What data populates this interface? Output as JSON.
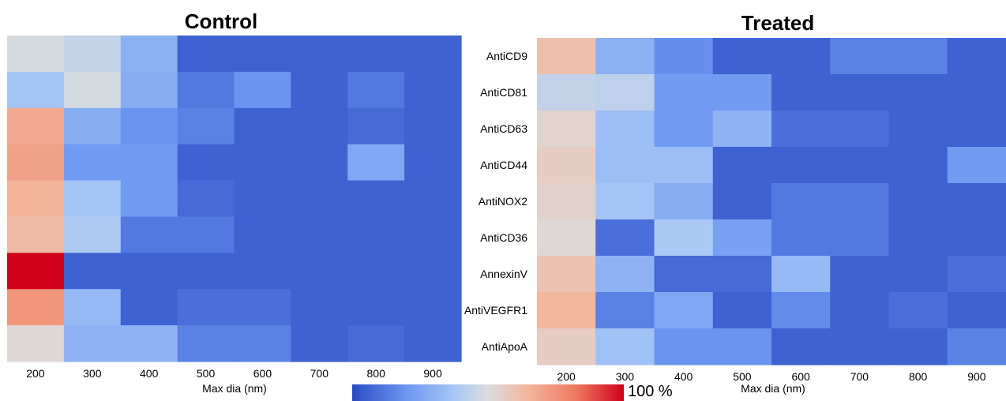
{
  "chart_data": [
    {
      "type": "heatmap",
      "title": "Control",
      "xlabel": "Max dia (nm)",
      "ylabel": "",
      "x_ticks": [
        "200",
        "300",
        "400",
        "500",
        "600",
        "700",
        "800",
        "900"
      ],
      "rows": [
        "AntiCD9",
        "AntiCD81",
        "AntiCD63",
        "AntiCD44",
        "AntiNOX2",
        "AntiCD36",
        "AnnexinV",
        "AntiVEGFR1",
        "AntiApoA"
      ],
      "values": [
        [
          0.48,
          0.42,
          0.25,
          0.05,
          0.05,
          0.05,
          0.05,
          0.05
        ],
        [
          0.32,
          0.48,
          0.24,
          0.1,
          0.16,
          0.05,
          0.1,
          0.05
        ],
        [
          0.7,
          0.24,
          0.16,
          0.12,
          0.05,
          0.05,
          0.07,
          0.05
        ],
        [
          0.72,
          0.18,
          0.18,
          0.05,
          0.05,
          0.05,
          0.22,
          0.05
        ],
        [
          0.67,
          0.32,
          0.18,
          0.07,
          0.05,
          0.05,
          0.05,
          0.05
        ],
        [
          0.64,
          0.35,
          0.1,
          0.1,
          0.05,
          0.05,
          0.05,
          0.05
        ],
        [
          1.0,
          0.05,
          0.05,
          0.05,
          0.05,
          0.05,
          0.05,
          0.05
        ],
        [
          0.76,
          0.28,
          0.05,
          0.08,
          0.08,
          0.05,
          0.05,
          0.05
        ],
        [
          0.52,
          0.26,
          0.26,
          0.12,
          0.12,
          0.05,
          0.07,
          0.05
        ]
      ],
      "colorbar": {
        "label": "100 %",
        "range": [
          0,
          100
        ]
      },
      "colors": [
        "#2a4bc4",
        "#6d97f2",
        "#a9c8f5",
        "#dbdcde",
        "#f4b59b",
        "#ee7b62",
        "#d0021b"
      ]
    },
    {
      "type": "heatmap",
      "title": "Treated",
      "xlabel": "Max dia (nm)",
      "ylabel": "",
      "x_ticks": [
        "200",
        "300",
        "400",
        "500",
        "600",
        "700",
        "800",
        "900"
      ],
      "rows": [
        "AntiCD9",
        "AntiCD81",
        "AntiCD63",
        "AntiCD44",
        "AntiNOX2",
        "AntiCD36",
        "AnnexinV",
        "AntiVEGFR1",
        "AntiApoA"
      ],
      "values": [
        [
          0.62,
          0.25,
          0.15,
          0.05,
          0.05,
          0.12,
          0.12,
          0.05
        ],
        [
          0.42,
          0.4,
          0.18,
          0.18,
          0.05,
          0.05,
          0.05,
          0.05
        ],
        [
          0.54,
          0.3,
          0.18,
          0.26,
          0.08,
          0.08,
          0.05,
          0.05
        ],
        [
          0.57,
          0.3,
          0.3,
          0.05,
          0.05,
          0.05,
          0.05,
          0.18
        ],
        [
          0.55,
          0.32,
          0.24,
          0.05,
          0.1,
          0.1,
          0.05,
          0.05
        ],
        [
          0.52,
          0.08,
          0.34,
          0.2,
          0.1,
          0.1,
          0.05,
          0.05
        ],
        [
          0.61,
          0.26,
          0.07,
          0.07,
          0.28,
          0.05,
          0.05,
          0.08
        ],
        [
          0.66,
          0.12,
          0.22,
          0.05,
          0.14,
          0.05,
          0.08,
          0.05
        ],
        [
          0.57,
          0.31,
          0.16,
          0.16,
          0.05,
          0.05,
          0.05,
          0.12
        ]
      ],
      "colorbar": {
        "label": "100 %",
        "range": [
          0,
          100
        ]
      },
      "colors": [
        "#2a4bc4",
        "#6d97f2",
        "#a9c8f5",
        "#dbdcde",
        "#f4b59b",
        "#ee7b62",
        "#d0021b"
      ]
    }
  ]
}
